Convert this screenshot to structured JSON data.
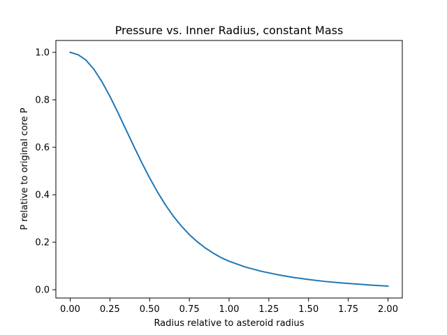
{
  "chart_data": {
    "type": "line",
    "title": "Pressure vs. Inner Radius, constant Mass",
    "xlabel": "Radius relative to asteroid radius",
    "ylabel": "P relative to original core P",
    "xlim": [
      -0.09,
      2.09
    ],
    "ylim": [
      -0.035,
      1.05
    ],
    "xticks": [
      0.0,
      0.25,
      0.5,
      0.75,
      1.0,
      1.25,
      1.5,
      1.75,
      2.0
    ],
    "xtick_labels": [
      "0.00",
      "0.25",
      "0.50",
      "0.75",
      "1.00",
      "1.25",
      "1.50",
      "1.75",
      "2.00"
    ],
    "yticks": [
      0.0,
      0.2,
      0.4,
      0.6,
      0.8,
      1.0
    ],
    "ytick_labels": [
      "0.0",
      "0.2",
      "0.4",
      "0.6",
      "0.8",
      "1.0"
    ],
    "grid": false,
    "line_color": "#1f77b4",
    "series": [
      {
        "x": [
          0.0,
          0.05,
          0.1,
          0.15,
          0.2,
          0.25,
          0.3,
          0.35,
          0.4,
          0.45,
          0.5,
          0.55,
          0.6,
          0.65,
          0.7,
          0.75,
          0.8,
          0.85,
          0.9,
          0.95,
          1.0,
          1.1,
          1.2,
          1.3,
          1.4,
          1.5,
          1.6,
          1.7,
          1.8,
          1.9,
          2.0
        ],
        "y": [
          1.0,
          0.99,
          0.967,
          0.928,
          0.876,
          0.815,
          0.747,
          0.676,
          0.605,
          0.536,
          0.471,
          0.411,
          0.357,
          0.309,
          0.268,
          0.232,
          0.202,
          0.176,
          0.154,
          0.135,
          0.12,
          0.096,
          0.078,
          0.064,
          0.052,
          0.043,
          0.035,
          0.029,
          0.024,
          0.019,
          0.015
        ]
      }
    ]
  }
}
